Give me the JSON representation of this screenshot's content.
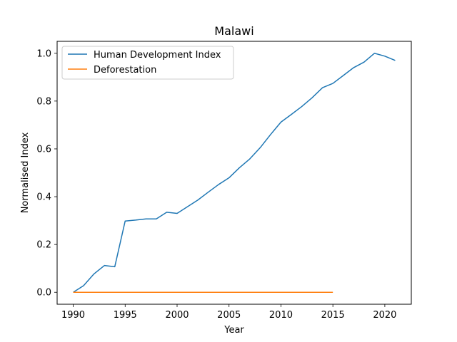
{
  "chart_data": {
    "type": "line",
    "title": "Malawi",
    "xlabel": "Year",
    "ylabel": "Normalised Index",
    "xlim": [
      1988.45,
      2022.55
    ],
    "ylim": [
      -0.05,
      1.05
    ],
    "xticks": [
      "1990",
      "1995",
      "2000",
      "2005",
      "2010",
      "2015",
      "2020"
    ],
    "yticks": [
      "0.0",
      "0.2",
      "0.4",
      "0.6",
      "0.8",
      "1.0"
    ],
    "grid": false,
    "legend_position": "top-left",
    "series": [
      {
        "name": "Human Development Index",
        "color": "#1f77b4",
        "x": [
          1990,
          1991,
          1992,
          1993,
          1994,
          1995,
          1996,
          1997,
          1998,
          1999,
          2000,
          2001,
          2002,
          2003,
          2004,
          2005,
          2006,
          2007,
          2008,
          2009,
          2010,
          2011,
          2012,
          2013,
          2014,
          2015,
          2016,
          2017,
          2018,
          2019,
          2020,
          2021
        ],
        "y": [
          0.0,
          0.028,
          0.077,
          0.112,
          0.107,
          0.298,
          0.302,
          0.307,
          0.307,
          0.335,
          0.33,
          0.358,
          0.386,
          0.419,
          0.451,
          0.479,
          0.521,
          0.558,
          0.605,
          0.66,
          0.712,
          0.744,
          0.777,
          0.814,
          0.856,
          0.874,
          0.907,
          0.94,
          0.963,
          1.0,
          0.988,
          0.97
        ]
      },
      {
        "name": "Deforestation",
        "color": "#ff7f0e",
        "x": [
          1990,
          1991,
          1992,
          1993,
          1994,
          1995,
          1996,
          1997,
          1998,
          1999,
          2000,
          2001,
          2002,
          2003,
          2004,
          2005,
          2006,
          2007,
          2008,
          2009,
          2010,
          2011,
          2012,
          2013,
          2014,
          2015
        ],
        "y": [
          0.0,
          0.0,
          0.0,
          0.0,
          0.0,
          0.0,
          0.0,
          0.0,
          0.0,
          0.0,
          0.0,
          0.0,
          0.0,
          0.0,
          0.0,
          0.0,
          0.0,
          0.0,
          0.0,
          0.0,
          0.0,
          0.0,
          0.0,
          0.0,
          0.0,
          0.0
        ]
      }
    ]
  }
}
